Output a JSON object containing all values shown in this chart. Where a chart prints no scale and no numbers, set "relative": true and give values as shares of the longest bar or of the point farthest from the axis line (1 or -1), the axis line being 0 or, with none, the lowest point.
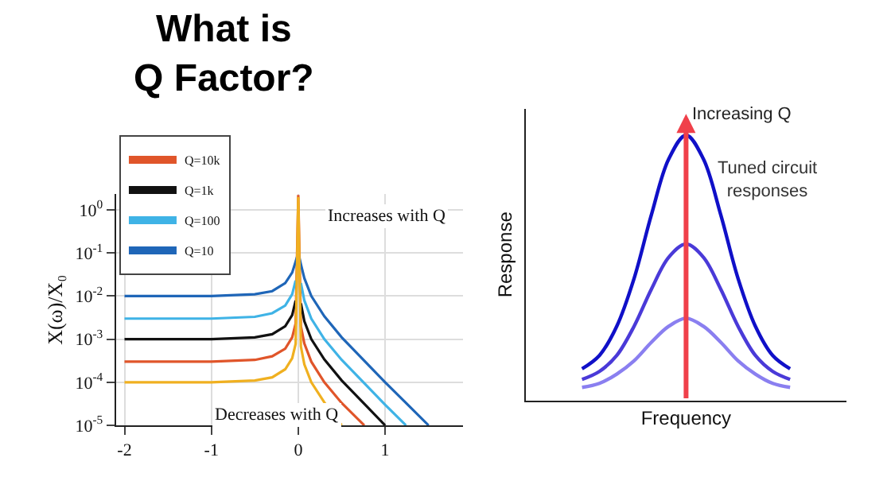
{
  "chart_data": [
    {
      "type": "line",
      "title": "What is\nQ Factor?",
      "ylabel": "X(ω)/X₀",
      "log": "y",
      "grid": true,
      "legend": "top left",
      "marker": "none",
      "line_style": "solid",
      "xlim": [
        -2.1,
        1.9
      ],
      "xticks": [
        -2,
        -1,
        0,
        1
      ],
      "ylim": [
        1e-05,
        2.3
      ],
      "yticks": [
        {
          "value": 1e-05,
          "label": "10$^{-5}$"
        },
        {
          "value": 0.0001,
          "label": "10$^{-4}$"
        },
        {
          "value": 0.001,
          "label": "10$^{-3}$"
        },
        {
          "value": 0.01,
          "label": "10$^{-2}$"
        },
        {
          "value": 0.1,
          "label": "10$^{-1}$"
        },
        {
          "value": 1,
          "label": "10$^{0}$"
        }
      ],
      "series": [
        {
          "name": "Q=10k",
          "color": "#e0552a",
          "x": [
            -2,
            -1,
            -0.5,
            -0.3,
            -0.15,
            -0.07,
            -0.03,
            0,
            0.03,
            0.07,
            0.15,
            0.3,
            0.5,
            0.76
          ],
          "values": [
            0.0003,
            0.0003,
            0.00033,
            0.0004,
            0.0006,
            0.0011,
            0.0023,
            2.2,
            0.002,
            0.00079,
            0.0003,
            0.0001,
            3.3e-05,
            1e-05
          ]
        },
        {
          "name": "Q=1k",
          "color": "#111111",
          "x": [
            -2,
            -1,
            -0.5,
            -0.3,
            -0.15,
            -0.07,
            -0.03,
            0,
            0.03,
            0.07,
            0.15,
            0.3,
            0.5,
            1.0
          ],
          "values": [
            0.001,
            0.001,
            0.0011,
            0.0013,
            0.002,
            0.0036,
            0.0078,
            null,
            0.0068,
            0.0026,
            0.001,
            0.00034,
            0.00011,
            1e-05
          ]
        },
        {
          "name": "Q=100",
          "color": "#3fb3e6",
          "x": [
            -2,
            -1,
            -0.5,
            -0.3,
            -0.15,
            -0.07,
            -0.03,
            0,
            0.03,
            0.07,
            0.15,
            0.3,
            0.5,
            1.0,
            1.24
          ],
          "values": [
            0.003,
            0.003,
            0.0033,
            0.004,
            0.006,
            0.011,
            0.023,
            null,
            0.02,
            0.0079,
            0.003,
            0.001,
            0.00033,
            3e-05,
            1e-05
          ]
        },
        {
          "name": "Q=10",
          "color": "#1f66b8",
          "x": [
            -2,
            -1,
            -0.5,
            -0.3,
            -0.15,
            -0.07,
            -0.03,
            0,
            0.03,
            0.07,
            0.15,
            0.3,
            0.5,
            1.0,
            1.5
          ],
          "values": [
            0.01,
            0.01,
            0.011,
            0.013,
            0.02,
            0.035,
            0.063,
            0.1,
            0.055,
            0.026,
            0.01,
            0.0034,
            0.0011,
            0.0001,
            1e-05
          ]
        },
        {
          "color": "#f0b020",
          "x": [
            -2,
            -1,
            -0.5,
            -0.3,
            -0.15,
            -0.07,
            -0.03,
            0,
            0.03,
            0.07,
            0.15,
            0.3,
            0.5
          ],
          "values": [
            0.0001,
            0.0001,
            0.00011,
            0.00013,
            0.0002,
            0.00036,
            0.00078,
            2,
            0.00068,
            0.00026,
            0.0001,
            3.4e-05,
            1e-05
          ]
        }
      ],
      "annotations": [
        "Increases with Q",
        "Decreases with Q"
      ]
    },
    {
      "type": "line",
      "relative": true,
      "xlabel": "Frequency",
      "ylabel": "Response",
      "grid": false,
      "marker": "none",
      "line_style": "solid",
      "categories": [
        null,
        null,
        null,
        null,
        null,
        null,
        null,
        null,
        null,
        null,
        null,
        null,
        null
      ],
      "series": [
        {
          "color": "#1010c8",
          "values": [
            0.12,
            0.17,
            0.28,
            0.46,
            0.7,
            0.91,
            1,
            0.91,
            0.7,
            0.46,
            0.28,
            0.17,
            0.12
          ]
        },
        {
          "color": "#4a3ad8",
          "values": [
            0.08,
            0.11,
            0.17,
            0.28,
            0.42,
            0.54,
            0.59,
            0.54,
            0.42,
            0.28,
            0.17,
            0.11,
            0.08
          ]
        },
        {
          "color": "#8a7ff0",
          "values": [
            0.05,
            0.065,
            0.1,
            0.15,
            0.22,
            0.28,
            0.31,
            0.28,
            0.22,
            0.15,
            0.1,
            0.065,
            0.05
          ]
        }
      ],
      "annotations": [
        "Increasing Q",
        "Tuned circuit\nresponses"
      ]
    }
  ]
}
